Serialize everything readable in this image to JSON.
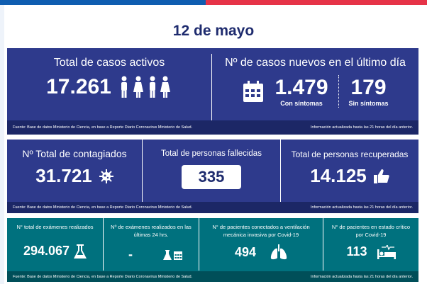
{
  "title": "12 de mayo",
  "colors": {
    "navy": "#2e3a8c",
    "teal": "#00717e",
    "blue": "#0f5db0",
    "red": "#e63348"
  },
  "footer": {
    "source": "Fuente: Base de datos Ministerio de Ciencia, en base a Reporte Diario Coronavirus Ministerio de Salud.",
    "updated": "Información actualizada hasta las 21 horas  del día anterior."
  },
  "active": {
    "label": "Total de casos activos",
    "value": "17.261",
    "icon": "people-icon"
  },
  "new_cases": {
    "label": "Nº de casos nuevos en el último día",
    "with_symptoms": "1.479",
    "with_label": "Con síntomas",
    "without_symptoms": "179",
    "without_label": "Sin síntomas",
    "icon": "calendar-icon"
  },
  "infected": {
    "label": "Nº Total de contagiados",
    "value": "31.721",
    "icon": "virus-icon"
  },
  "deceased": {
    "label": "Total de personas fallecidas",
    "value": "335"
  },
  "recovered": {
    "label": "Total de personas recuperadas",
    "value": "14.125",
    "icon": "thumbs-up-icon"
  },
  "exams_total": {
    "label": "N° total de exámenes realizados",
    "value": "294.067",
    "icon": "flask-icon"
  },
  "exams_24h": {
    "label": "Nº de exámenes realizados en las últimas 24 hrs.",
    "value": "-",
    "icon": "flask-calendar-icon"
  },
  "ventilation": {
    "label": "N° de pacientes conectados a ventilación mecánica invasiva por Covid-19",
    "value": "494",
    "icon": "lungs-icon"
  },
  "critical": {
    "label": "N° de pacientes en estado crítico por Covid-19",
    "value": "113",
    "icon": "hospital-bed-icon"
  }
}
